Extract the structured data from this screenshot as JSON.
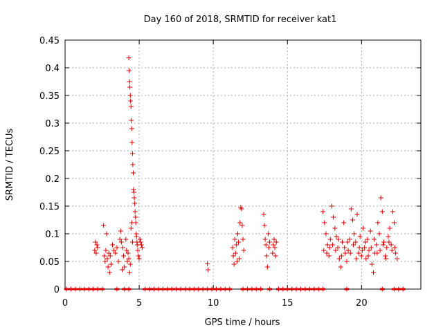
{
  "chart_data": {
    "type": "scatter",
    "title": "Day 160 of 2018, SRMTID for receiver kat1",
    "xlabel": "GPS time / hours",
    "ylabel": "SRMTID / TECUs",
    "xlim": [
      0,
      24
    ],
    "ylim": [
      0,
      0.45
    ],
    "grid": true,
    "marker": "+",
    "colors": {
      "points": "#dd0000",
      "grid": "#aaaaaa",
      "axes": "#000000"
    },
    "x_ticks": [
      {
        "value": 0,
        "label": "0"
      },
      {
        "value": 5,
        "label": "5"
      },
      {
        "value": 10,
        "label": "10"
      },
      {
        "value": 15,
        "label": "15"
      },
      {
        "value": 20,
        "label": "20"
      }
    ],
    "y_ticks": [
      {
        "value": 0,
        "label": "0"
      },
      {
        "value": 0.05,
        "label": "0.05"
      },
      {
        "value": 0.1,
        "label": "0.1"
      },
      {
        "value": 0.15,
        "label": "0.15"
      },
      {
        "value": 0.2,
        "label": "0.2"
      },
      {
        "value": 0.25,
        "label": "0.25"
      },
      {
        "value": 0.3,
        "label": "0.3"
      },
      {
        "value": 0.35,
        "label": "0.35"
      },
      {
        "value": 0.4,
        "label": "0.4"
      },
      {
        "value": 0.45,
        "label": "0.45"
      }
    ],
    "series": [
      {
        "name": "SRMTID",
        "points": [
          [
            2.0,
            0.07
          ],
          [
            2.05,
            0.085
          ],
          [
            2.1,
            0.065
          ],
          [
            2.15,
            0.08
          ],
          [
            2.2,
            0.075
          ],
          [
            2.6,
            0.115
          ],
          [
            2.65,
            0.06
          ],
          [
            2.7,
            0.05
          ],
          [
            2.75,
            0.07
          ],
          [
            2.8,
            0.1
          ],
          [
            2.85,
            0.055
          ],
          [
            2.9,
            0.04
          ],
          [
            2.95,
            0.065
          ],
          [
            3.0,
            0.03
          ],
          [
            3.05,
            0.06
          ],
          [
            3.1,
            0.045
          ],
          [
            3.2,
            0.08
          ],
          [
            3.3,
            0.07
          ],
          [
            3.4,
            0.065
          ],
          [
            3.5,
            0.075
          ],
          [
            3.6,
            0.05
          ],
          [
            3.7,
            0.09
          ],
          [
            3.75,
            0.105
          ],
          [
            3.8,
            0.085
          ],
          [
            3.85,
            0.035
          ],
          [
            3.9,
            0.075
          ],
          [
            3.95,
            0.06
          ],
          [
            4.0,
            0.04
          ],
          [
            4.1,
            0.09
          ],
          [
            4.15,
            0.07
          ],
          [
            4.2,
            0.05
          ],
          [
            4.25,
            0.065
          ],
          [
            4.3,
            0.055
          ],
          [
            4.35,
            0.03
          ],
          [
            4.4,
            0.045
          ],
          [
            4.45,
            0.11
          ],
          [
            4.5,
            0.12
          ],
          [
            4.55,
            0.085
          ],
          [
            4.3,
            0.418
          ],
          [
            4.32,
            0.395
          ],
          [
            4.35,
            0.375
          ],
          [
            4.37,
            0.365
          ],
          [
            4.4,
            0.35
          ],
          [
            4.42,
            0.34
          ],
          [
            4.45,
            0.33
          ],
          [
            4.47,
            0.305
          ],
          [
            4.5,
            0.29
          ],
          [
            4.52,
            0.265
          ],
          [
            4.55,
            0.245
          ],
          [
            4.57,
            0.225
          ],
          [
            4.6,
            0.21
          ],
          [
            4.62,
            0.18
          ],
          [
            4.65,
            0.175
          ],
          [
            4.67,
            0.165
          ],
          [
            4.7,
            0.155
          ],
          [
            4.72,
            0.14
          ],
          [
            4.75,
            0.13
          ],
          [
            4.77,
            0.12
          ],
          [
            4.8,
            0.1
          ],
          [
            4.82,
            0.095
          ],
          [
            4.85,
            0.085
          ],
          [
            4.87,
            0.08
          ],
          [
            4.9,
            0.07
          ],
          [
            4.95,
            0.06
          ],
          [
            5.0,
            0.055
          ],
          [
            5.05,
            0.09
          ],
          [
            5.1,
            0.085
          ],
          [
            5.15,
            0.08
          ],
          [
            5.2,
            0.075
          ],
          [
            9.6,
            0.046
          ],
          [
            9.65,
            0.035
          ],
          [
            11.3,
            0.075
          ],
          [
            11.35,
            0.06
          ],
          [
            11.4,
            0.045
          ],
          [
            11.45,
            0.09
          ],
          [
            11.5,
            0.065
          ],
          [
            11.55,
            0.08
          ],
          [
            11.6,
            0.05
          ],
          [
            11.65,
            0.1
          ],
          [
            11.7,
            0.085
          ],
          [
            11.75,
            0.055
          ],
          [
            11.8,
            0.12
          ],
          [
            11.85,
            0.148
          ],
          [
            11.9,
            0.145
          ],
          [
            11.95,
            0.115
          ],
          [
            12.0,
            0.09
          ],
          [
            12.05,
            0.07
          ],
          [
            13.4,
            0.135
          ],
          [
            13.45,
            0.115
          ],
          [
            13.5,
            0.09
          ],
          [
            13.55,
            0.08
          ],
          [
            13.6,
            0.06
          ],
          [
            13.65,
            0.04
          ],
          [
            13.7,
            0.1
          ],
          [
            13.75,
            0.075
          ],
          [
            13.8,
            0.085
          ],
          [
            14.0,
            0.065
          ],
          [
            14.05,
            0.08
          ],
          [
            14.1,
            0.09
          ],
          [
            14.15,
            0.075
          ],
          [
            14.2,
            0.06
          ],
          [
            14.25,
            0.085
          ],
          [
            17.4,
            0.14
          ],
          [
            17.5,
            0.12
          ],
          [
            17.6,
            0.1
          ],
          [
            17.7,
            0.08
          ],
          [
            17.8,
            0.06
          ],
          [
            17.9,
            0.09
          ],
          [
            18.0,
            0.15
          ],
          [
            18.1,
            0.13
          ],
          [
            18.2,
            0.11
          ],
          [
            18.3,
            0.095
          ],
          [
            18.4,
            0.075
          ],
          [
            18.5,
            0.055
          ],
          [
            18.6,
            0.04
          ],
          [
            18.7,
            0.085
          ],
          [
            18.8,
            0.12
          ],
          [
            18.9,
            0.065
          ],
          [
            19.0,
            0.05
          ],
          [
            19.1,
            0.07
          ],
          [
            19.2,
            0.09
          ],
          [
            19.3,
            0.145
          ],
          [
            19.4,
            0.125
          ],
          [
            19.5,
            0.1
          ],
          [
            19.6,
            0.085
          ],
          [
            19.7,
            0.135
          ],
          [
            19.8,
            0.065
          ],
          [
            19.9,
            0.095
          ],
          [
            20.0,
            0.06
          ],
          [
            20.1,
            0.11
          ],
          [
            20.2,
            0.075
          ],
          [
            20.3,
            0.055
          ],
          [
            20.4,
            0.09
          ],
          [
            20.5,
            0.07
          ],
          [
            20.6,
            0.105
          ],
          [
            20.7,
            0.045
          ],
          [
            20.8,
            0.03
          ],
          [
            20.9,
            0.065
          ],
          [
            21.0,
            0.08
          ],
          [
            21.1,
            0.12
          ],
          [
            21.2,
            0.1
          ],
          [
            21.3,
            0.165
          ],
          [
            21.4,
            0.14
          ],
          [
            21.5,
            0.085
          ],
          [
            21.6,
            0.06
          ],
          [
            21.7,
            0.075
          ],
          [
            21.8,
            0.095
          ],
          [
            21.9,
            0.11
          ],
          [
            22.0,
            0.08
          ],
          [
            22.1,
            0.14
          ],
          [
            22.2,
            0.12
          ],
          [
            22.3,
            0.065
          ],
          [
            22.4,
            0.055
          ],
          [
            17.45,
            0.07
          ],
          [
            17.65,
            0.065
          ],
          [
            17.85,
            0.075
          ],
          [
            18.05,
            0.08
          ],
          [
            18.25,
            0.07
          ],
          [
            18.45,
            0.09
          ],
          [
            18.65,
            0.06
          ],
          [
            18.85,
            0.075
          ],
          [
            19.05,
            0.085
          ],
          [
            19.25,
            0.065
          ],
          [
            19.45,
            0.08
          ],
          [
            19.65,
            0.055
          ],
          [
            19.85,
            0.075
          ],
          [
            20.05,
            0.07
          ],
          [
            20.25,
            0.085
          ],
          [
            20.45,
            0.06
          ],
          [
            20.65,
            0.075
          ],
          [
            20.85,
            0.09
          ],
          [
            21.05,
            0.065
          ],
          [
            21.25,
            0.07
          ],
          [
            21.45,
            0.08
          ],
          [
            21.65,
            0.055
          ],
          [
            21.85,
            0.085
          ],
          [
            22.05,
            0.07
          ],
          [
            22.25,
            0.075
          ],
          [
            0.1,
            0.0
          ],
          [
            0.4,
            0.0
          ],
          [
            0.7,
            0.0
          ],
          [
            1.0,
            0.0
          ],
          [
            1.3,
            0.0
          ],
          [
            1.6,
            0.0
          ],
          [
            1.9,
            0.0
          ],
          [
            2.2,
            0.0
          ],
          [
            2.5,
            0.0
          ],
          [
            3.5,
            0.0
          ],
          [
            4.0,
            0.0
          ],
          [
            4.3,
            0.0
          ],
          [
            5.4,
            0.0
          ],
          [
            5.7,
            0.0
          ],
          [
            6.0,
            0.0
          ],
          [
            6.3,
            0.0
          ],
          [
            6.6,
            0.0
          ],
          [
            6.9,
            0.0
          ],
          [
            7.2,
            0.0
          ],
          [
            7.5,
            0.0
          ],
          [
            7.8,
            0.0
          ],
          [
            8.1,
            0.0
          ],
          [
            8.4,
            0.0
          ],
          [
            8.7,
            0.0
          ],
          [
            9.0,
            0.0
          ],
          [
            9.3,
            0.0
          ],
          [
            9.6,
            0.0
          ],
          [
            9.9,
            0.0
          ],
          [
            10.2,
            0.0
          ],
          [
            10.5,
            0.0
          ],
          [
            10.8,
            0.0
          ],
          [
            11.1,
            0.0
          ],
          [
            12.0,
            0.0
          ],
          [
            12.3,
            0.0
          ],
          [
            12.6,
            0.0
          ],
          [
            12.9,
            0.0
          ],
          [
            13.2,
            0.0
          ],
          [
            13.8,
            0.0
          ],
          [
            14.4,
            0.0
          ],
          [
            14.7,
            0.0
          ],
          [
            15.0,
            0.0
          ],
          [
            15.3,
            0.0
          ],
          [
            15.6,
            0.0
          ],
          [
            15.9,
            0.0
          ],
          [
            16.2,
            0.0
          ],
          [
            16.5,
            0.0
          ],
          [
            16.8,
            0.0
          ],
          [
            17.1,
            0.0
          ],
          [
            17.4,
            0.0
          ],
          [
            19.0,
            0.0
          ],
          [
            21.4,
            0.0
          ],
          [
            22.2,
            0.0
          ],
          [
            22.5,
            0.0
          ],
          [
            22.8,
            0.0
          ]
        ]
      }
    ]
  }
}
